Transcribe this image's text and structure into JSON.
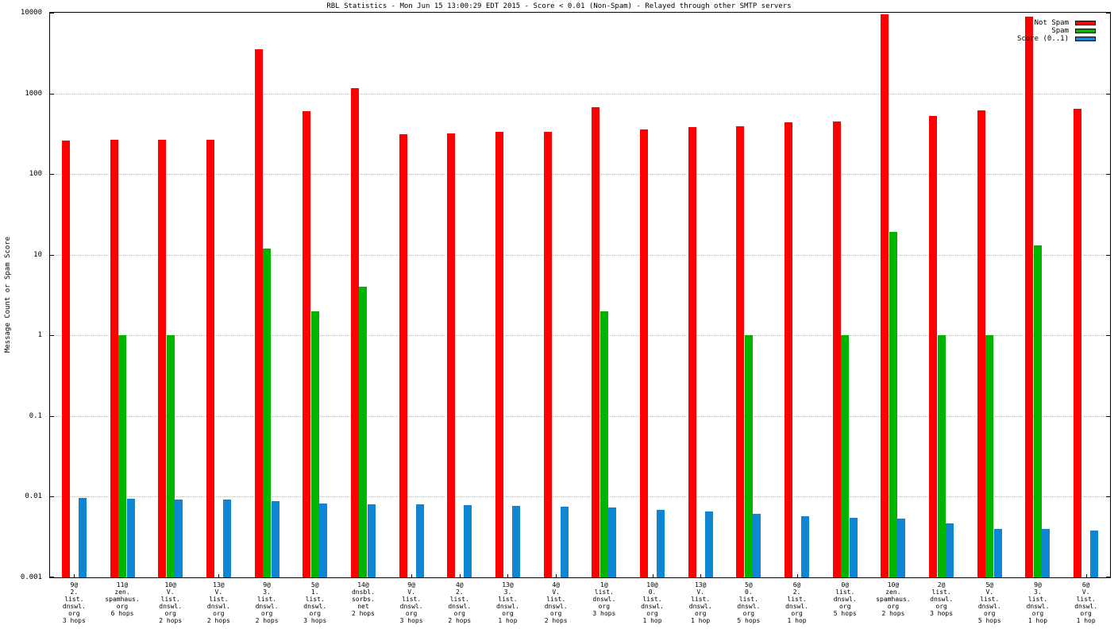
{
  "chart_data": {
    "type": "bar",
    "title": "RBL Statistics - Mon Jun 15 13:00:29 EDT 2015 - Score < 0.01 (Non-Spam) - Relayed through other SMTP servers",
    "ylabel": "Message Count or Spam Score",
    "xlabel": "",
    "y_scale": "log",
    "ylim": [
      0.001,
      10000
    ],
    "yticks": [
      10000,
      1000,
      100,
      10,
      1,
      0.1,
      0.01,
      0.001
    ],
    "grid": true,
    "legend_position": "top-right",
    "categories": [
      [
        "9@",
        "2.",
        "list.",
        "dnswl.",
        "org",
        "3 hops"
      ],
      [
        "11@",
        "zen.",
        "spamhaus.",
        "org",
        "6 hops"
      ],
      [
        "10@",
        "V.",
        "list.",
        "dnswl.",
        "org",
        "2 hops"
      ],
      [
        "13@",
        "V.",
        "list.",
        "dnswl.",
        "org",
        "2 hops"
      ],
      [
        "9@",
        "3.",
        "list.",
        "dnswl.",
        "org",
        "2 hops"
      ],
      [
        "5@",
        "1.",
        "list.",
        "dnswl.",
        "org",
        "3 hops"
      ],
      [
        "14@",
        "dnsbl.",
        "sorbs.",
        "net",
        "2 hops"
      ],
      [
        "9@",
        "V.",
        "list.",
        "dnswl.",
        "org",
        "3 hops"
      ],
      [
        "4@",
        "2.",
        "list.",
        "dnswl.",
        "org",
        "2 hops"
      ],
      [
        "13@",
        "3.",
        "list.",
        "dnswl.",
        "org",
        "1 hop"
      ],
      [
        "4@",
        "V.",
        "list.",
        "dnswl.",
        "org",
        "2 hops"
      ],
      [
        "1@",
        "list.",
        "dnswl.",
        "org",
        "3 hops"
      ],
      [
        "10@",
        "0.",
        "list.",
        "dnswl.",
        "org",
        "1 hop"
      ],
      [
        "13@",
        "V.",
        "list.",
        "dnswl.",
        "org",
        "1 hop"
      ],
      [
        "5@",
        "0.",
        "list.",
        "dnswl.",
        "org",
        "5 hops"
      ],
      [
        "6@",
        "2.",
        "list.",
        "dnswl.",
        "org",
        "1 hop"
      ],
      [
        "0@",
        "list.",
        "dnswl.",
        "org",
        "5 hops"
      ],
      [
        "10@",
        "zen.",
        "spamhaus.",
        "org",
        "2 hops"
      ],
      [
        "2@",
        "list.",
        "dnswl.",
        "org",
        "3 hops"
      ],
      [
        "5@",
        "V.",
        "list.",
        "dnswl.",
        "org",
        "5 hops"
      ],
      [
        "9@",
        "3.",
        "list.",
        "dnswl.",
        "org",
        "1 hop"
      ],
      [
        "6@",
        "V.",
        "list.",
        "dnswl.",
        "org",
        "1 hop"
      ]
    ],
    "series": [
      {
        "name": "Not Spam",
        "color": "#ff0000",
        "values": [
          260,
          265,
          265,
          265,
          3500,
          600,
          1150,
          310,
          320,
          330,
          335,
          680,
          360,
          380,
          390,
          440,
          450,
          9500,
          520,
          620,
          9000,
          650
        ]
      },
      {
        "name": "Spam",
        "color": "#00b400",
        "values": [
          null,
          1,
          1,
          null,
          12,
          2,
          4,
          null,
          null,
          null,
          null,
          2,
          null,
          null,
          1,
          null,
          1,
          19,
          1,
          1,
          13,
          null
        ]
      },
      {
        "name": "Score (0..1)",
        "color": "#0e86d4",
        "values": [
          0.0097,
          0.0094,
          0.0092,
          0.0092,
          0.0088,
          0.0083,
          0.0081,
          0.008,
          0.0079,
          0.0077,
          0.0076,
          0.0073,
          0.0069,
          0.0066,
          0.0062,
          0.0057,
          0.0055,
          0.0053,
          0.0047,
          0.004,
          0.004,
          0.0038
        ]
      }
    ]
  }
}
